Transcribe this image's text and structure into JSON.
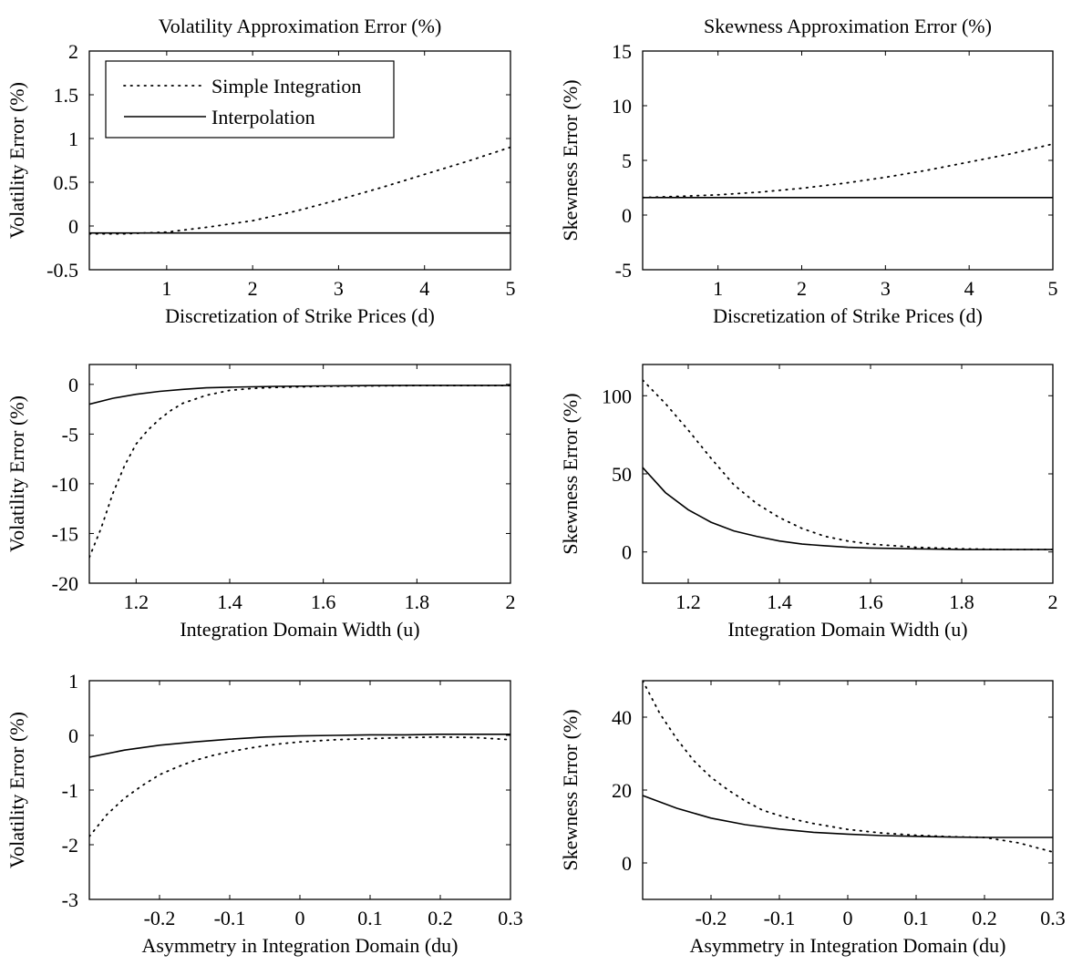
{
  "chart_data": [
    {
      "type": "line",
      "title": "Volatility Approximation Error (%)",
      "xlabel": "Discretization of Strike Prices (d)",
      "ylabel": "Volatility Error (%)",
      "xlim": [
        0.1,
        5
      ],
      "ylim": [
        -0.5,
        2
      ],
      "xticks": [
        1,
        2,
        3,
        4,
        5
      ],
      "yticks": [
        -0.5,
        0,
        0.5,
        1,
        1.5,
        2
      ],
      "ytick_labels": [
        "-0.5",
        "0",
        "0.5",
        "1",
        "1.5",
        "2"
      ],
      "legend": "top-left",
      "series": [
        {
          "name": "Simple Integration",
          "style": "dotted",
          "x": [
            0.1,
            0.5,
            1,
            1.5,
            2,
            2.5,
            3,
            3.5,
            4,
            4.5,
            5
          ],
          "values": [
            -0.09,
            -0.09,
            -0.07,
            -0.01,
            0.06,
            0.17,
            0.3,
            0.44,
            0.59,
            0.74,
            0.9
          ]
        },
        {
          "name": "Interpolation",
          "style": "solid",
          "x": [
            0.1,
            5
          ],
          "values": [
            -0.08,
            -0.08
          ]
        }
      ]
    },
    {
      "type": "line",
      "title": "Skewness Approximation Error (%)",
      "xlabel": "Discretization of Strike Prices (d)",
      "ylabel": "Skewness Error (%)",
      "xlim": [
        0.1,
        5
      ],
      "ylim": [
        -5,
        15
      ],
      "xticks": [
        1,
        2,
        3,
        4,
        5
      ],
      "yticks": [
        -5,
        0,
        5,
        10,
        15
      ],
      "ytick_labels": [
        "-5",
        "0",
        "5",
        "10",
        "15"
      ],
      "series": [
        {
          "name": "Simple Integration",
          "style": "dotted",
          "x": [
            0.1,
            0.5,
            1,
            1.5,
            2,
            2.5,
            3,
            3.5,
            4,
            4.5,
            5
          ],
          "values": [
            1.6,
            1.7,
            1.85,
            2.1,
            2.45,
            2.9,
            3.45,
            4.1,
            4.85,
            5.6,
            6.5
          ]
        },
        {
          "name": "Interpolation",
          "style": "solid",
          "x": [
            0.1,
            5
          ],
          "values": [
            1.6,
            1.6
          ]
        }
      ]
    },
    {
      "type": "line",
      "title": "",
      "xlabel": "Integration Domain Width (u)",
      "ylabel": "Volatility Error (%)",
      "xlim": [
        1.1,
        2
      ],
      "ylim": [
        -20,
        2
      ],
      "xticks": [
        1.2,
        1.4,
        1.6,
        1.8,
        2
      ],
      "yticks": [
        -20,
        -15,
        -10,
        -5,
        0
      ],
      "ytick_labels": [
        "-20",
        "-15",
        "-10",
        "-5",
        "0"
      ],
      "series": [
        {
          "name": "Simple Integration",
          "style": "dotted",
          "x": [
            1.1,
            1.125,
            1.15,
            1.175,
            1.2,
            1.225,
            1.25,
            1.275,
            1.3,
            1.35,
            1.4,
            1.45,
            1.5,
            1.6,
            1.7,
            1.8,
            1.9,
            2
          ],
          "values": [
            -17.4,
            -14.5,
            -11.0,
            -8.2,
            -6.0,
            -4.6,
            -3.5,
            -2.6,
            -1.9,
            -1.1,
            -0.6,
            -0.4,
            -0.3,
            -0.2,
            -0.15,
            -0.12,
            -0.12,
            -0.12
          ]
        },
        {
          "name": "Interpolation",
          "style": "solid",
          "x": [
            1.1,
            1.15,
            1.2,
            1.25,
            1.3,
            1.35,
            1.4,
            1.5,
            1.6,
            1.7,
            1.8,
            1.9,
            2
          ],
          "values": [
            -2.0,
            -1.4,
            -1.0,
            -0.7,
            -0.5,
            -0.35,
            -0.28,
            -0.2,
            -0.15,
            -0.12,
            -0.1,
            -0.1,
            -0.1
          ]
        }
      ]
    },
    {
      "type": "line",
      "title": "",
      "xlabel": "Integration Domain Width (u)",
      "ylabel": "Skewness Error (%)",
      "xlim": [
        1.1,
        2
      ],
      "ylim": [
        -20,
        120
      ],
      "xticks": [
        1.2,
        1.4,
        1.6,
        1.8,
        2
      ],
      "yticks": [
        0,
        50,
        100
      ],
      "ytick_labels": [
        "0",
        "50",
        "100"
      ],
      "series": [
        {
          "name": "Simple Integration",
          "style": "dotted",
          "x": [
            1.1,
            1.15,
            1.2,
            1.25,
            1.3,
            1.35,
            1.4,
            1.45,
            1.5,
            1.55,
            1.6,
            1.7,
            1.8,
            1.9,
            2
          ],
          "values": [
            110,
            95,
            78,
            60,
            43,
            31,
            22,
            15,
            10,
            7,
            5,
            3,
            2,
            1.5,
            1.5
          ]
        },
        {
          "name": "Interpolation",
          "style": "solid",
          "x": [
            1.1,
            1.15,
            1.2,
            1.25,
            1.3,
            1.35,
            1.4,
            1.45,
            1.5,
            1.55,
            1.6,
            1.7,
            1.8,
            1.9,
            2
          ],
          "values": [
            54,
            38,
            27,
            19,
            13.5,
            10,
            7,
            5,
            4,
            3,
            2.5,
            2,
            1.5,
            1.5,
            1.5
          ]
        }
      ]
    },
    {
      "type": "line",
      "title": "",
      "xlabel": "Asymmetry in Integration Domain (du)",
      "ylabel": "Volatility Error (%)",
      "xlim": [
        -0.3,
        0.3
      ],
      "ylim": [
        -3,
        1
      ],
      "xticks": [
        -0.2,
        -0.1,
        0,
        0.1,
        0.2,
        0.3
      ],
      "xtick_labels": [
        "-0.2",
        "-0.1",
        "0",
        "0.1",
        "0.2",
        "0.3"
      ],
      "yticks": [
        -3,
        -2,
        -1,
        0,
        1
      ],
      "ytick_labels": [
        "-3",
        "-2",
        "-1",
        "0",
        "1"
      ],
      "series": [
        {
          "name": "Simple Integration",
          "style": "dotted",
          "x": [
            -0.3,
            -0.275,
            -0.25,
            -0.225,
            -0.2,
            -0.175,
            -0.15,
            -0.125,
            -0.1,
            -0.075,
            -0.05,
            -0.025,
            0,
            0.05,
            0.1,
            0.15,
            0.2,
            0.25,
            0.3
          ],
          "values": [
            -1.85,
            -1.45,
            -1.15,
            -0.92,
            -0.72,
            -0.58,
            -0.46,
            -0.37,
            -0.3,
            -0.24,
            -0.19,
            -0.15,
            -0.12,
            -0.08,
            -0.06,
            -0.04,
            -0.03,
            -0.04,
            -0.08
          ]
        },
        {
          "name": "Interpolation",
          "style": "solid",
          "x": [
            -0.3,
            -0.25,
            -0.2,
            -0.15,
            -0.1,
            -0.05,
            0,
            0.05,
            0.1,
            0.15,
            0.2,
            0.25,
            0.3
          ],
          "values": [
            -0.4,
            -0.27,
            -0.18,
            -0.12,
            -0.07,
            -0.03,
            -0.01,
            0,
            0.01,
            0.01,
            0.02,
            0.02,
            0.02
          ]
        }
      ]
    },
    {
      "type": "line",
      "title": "",
      "xlabel": "Asymmetry in Integration Domain (du)",
      "ylabel": "Skewness Error (%)",
      "xlim": [
        -0.3,
        0.3
      ],
      "ylim": [
        -10,
        50
      ],
      "xticks": [
        -0.2,
        -0.1,
        0,
        0.1,
        0.2,
        0.3
      ],
      "xtick_labels": [
        "-0.2",
        "-0.1",
        "0",
        "0.1",
        "0.2",
        "0.3"
      ],
      "yticks": [
        0,
        20,
        40
      ],
      "ytick_labels": [
        "0",
        "20",
        "40"
      ],
      "series": [
        {
          "name": "Simple Integration",
          "style": "dotted",
          "x": [
            -0.3,
            -0.275,
            -0.25,
            -0.225,
            -0.2,
            -0.175,
            -0.15,
            -0.125,
            -0.1,
            -0.075,
            -0.05,
            0,
            0.05,
            0.1,
            0.15,
            0.2,
            0.25,
            0.3
          ],
          "values": [
            50,
            41,
            34,
            28,
            23.5,
            20,
            17,
            14.5,
            13,
            11.8,
            10.8,
            9.2,
            8.2,
            7.6,
            7.2,
            7,
            5.5,
            3
          ]
        },
        {
          "name": "Interpolation",
          "style": "solid",
          "x": [
            -0.3,
            -0.25,
            -0.2,
            -0.15,
            -0.1,
            -0.05,
            0,
            0.05,
            0.1,
            0.15,
            0.2,
            0.25,
            0.3
          ],
          "values": [
            18.5,
            15,
            12.3,
            10.5,
            9.3,
            8.4,
            7.9,
            7.5,
            7.3,
            7.1,
            7,
            7,
            7
          ]
        }
      ]
    }
  ]
}
